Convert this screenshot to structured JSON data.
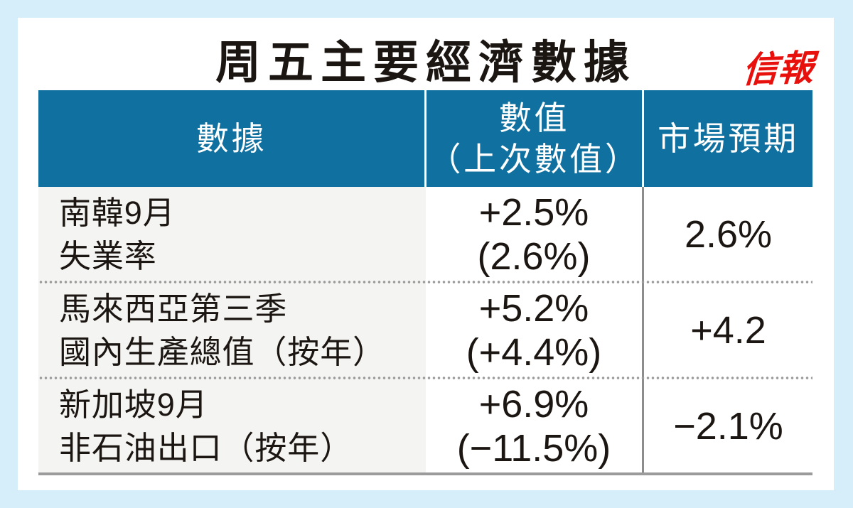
{
  "title": "周五主要經濟數據",
  "publication": {
    "logo_text": "信報"
  },
  "colors": {
    "page_background": "#d6eef9",
    "card_background": "#ffffff",
    "header_blue": "#10709f",
    "logo_red": "#e8100c",
    "label_column_background": "#f4f4f2",
    "text": "#1c1613",
    "divider_gray": "#9b9b9b"
  },
  "table": {
    "header": {
      "indicator": "數據",
      "value_line1": "數值",
      "value_line2": "（上次數值）",
      "forecast": "市場預期"
    },
    "rows": [
      {
        "label_line1": "南韓9月",
        "label_line2": "失業率",
        "value": "+2.5%",
        "previous": "(2.6%)",
        "forecast": "2.6%"
      },
      {
        "label_line1": "馬來西亞第三季",
        "label_line2": "國內生產總值（按年）",
        "value": "+5.2%",
        "previous": "(+4.4%)",
        "forecast": "+4.2"
      },
      {
        "label_line1": "新加坡9月",
        "label_line2": "非石油出口（按年）",
        "value": "+6.9%",
        "previous": "(−11.5%)",
        "forecast": "−2.1%"
      }
    ]
  },
  "chart_data": {
    "type": "table",
    "title": "周五主要經濟數據",
    "columns": [
      "數據",
      "數值（上次數值）",
      "市場預期"
    ],
    "rows": [
      [
        "南韓9月失業率",
        "+2.5% (2.6%)",
        "2.6%"
      ],
      [
        "馬來西亞第三季國內生產總值（按年）",
        "+5.2% (+4.4%)",
        "+4.2"
      ],
      [
        "新加坡9月非石油出口（按年）",
        "+6.9% (−11.5%)",
        "−2.1%"
      ]
    ]
  }
}
